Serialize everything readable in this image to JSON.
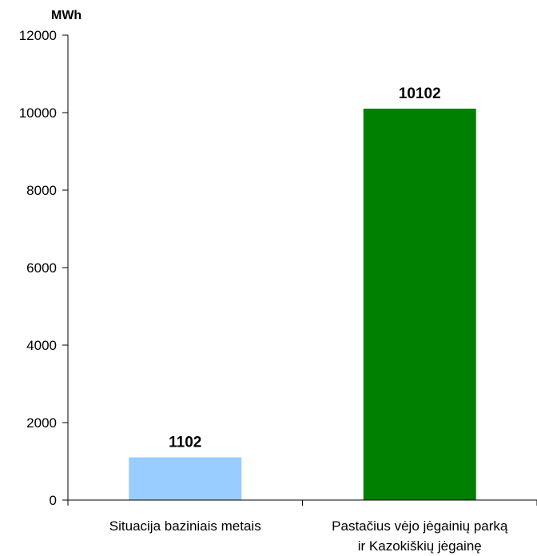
{
  "chart_data": {
    "type": "bar",
    "ylabel": "MWh",
    "categories": [
      [
        "Situacija baziniais metais"
      ],
      [
        "Pastačius vėjo jėgainių parką",
        "ir Kazokiškių jėgainę"
      ]
    ],
    "values": [
      1102,
      10102
    ],
    "data_labels": [
      "1102",
      "10102"
    ],
    "colors": [
      "#99ccff",
      "#008000"
    ],
    "ylim": [
      0,
      12000
    ],
    "yticks": [
      0,
      2000,
      4000,
      6000,
      8000,
      10000,
      12000
    ],
    "grid": false,
    "legend": "none"
  }
}
